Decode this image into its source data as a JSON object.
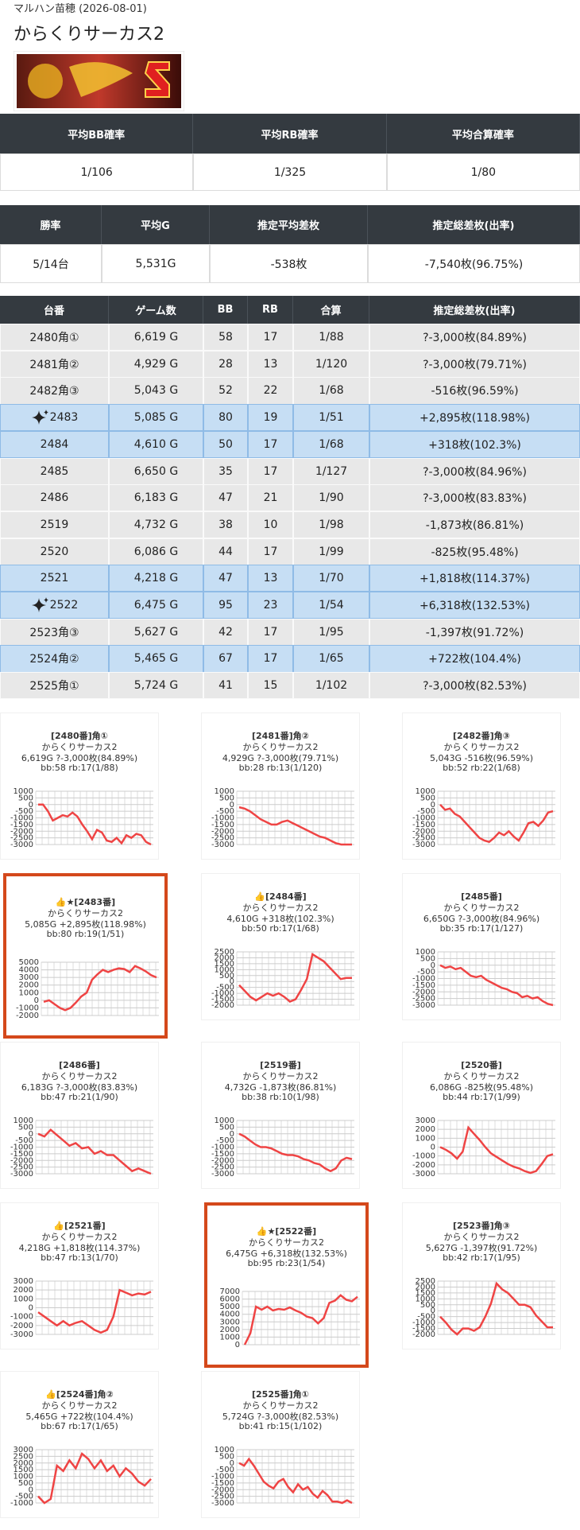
{
  "header": {
    "store": "マルハン苗穂 (2026-08-01)",
    "title": "からくりサーカス2"
  },
  "summary1": {
    "headers": [
      "平均BB確率",
      "平均RB確率",
      "平均合算確率"
    ],
    "values": [
      "1/106",
      "1/325",
      "1/80"
    ]
  },
  "summary2": {
    "headers": [
      "勝率",
      "平均G",
      "推定平均差枚",
      "推定総差枚(出率)"
    ],
    "values": [
      "5/14台",
      "5,531G",
      "-538枚",
      "-7,540枚(96.75%)"
    ]
  },
  "table": {
    "headers": [
      "台番",
      "ゲーム数",
      "BB",
      "RB",
      "合算",
      "推定総差枚(出率)"
    ],
    "rows": [
      {
        "cells": [
          "2480角①",
          "6,619 G",
          "58",
          "17",
          "1/88",
          "?-3,000枚(84.89%)"
        ],
        "highlight": false,
        "sparkle": false
      },
      {
        "cells": [
          "2481角②",
          "4,929 G",
          "28",
          "13",
          "1/120",
          "?-3,000枚(79.71%)"
        ],
        "highlight": false,
        "sparkle": false
      },
      {
        "cells": [
          "2482角③",
          "5,043 G",
          "52",
          "22",
          "1/68",
          "-516枚(96.59%)"
        ],
        "highlight": false,
        "sparkle": false
      },
      {
        "cells": [
          "2483",
          "5,085 G",
          "80",
          "19",
          "1/51",
          "+2,895枚(118.98%)"
        ],
        "highlight": true,
        "sparkle": true
      },
      {
        "cells": [
          "2484",
          "4,610 G",
          "50",
          "17",
          "1/68",
          "+318枚(102.3%)"
        ],
        "highlight": true,
        "sparkle": false
      },
      {
        "cells": [
          "2485",
          "6,650 G",
          "35",
          "17",
          "1/127",
          "?-3,000枚(84.96%)"
        ],
        "highlight": false,
        "sparkle": false
      },
      {
        "cells": [
          "2486",
          "6,183 G",
          "47",
          "21",
          "1/90",
          "?-3,000枚(83.83%)"
        ],
        "highlight": false,
        "sparkle": false
      },
      {
        "cells": [
          "2519",
          "4,732 G",
          "38",
          "10",
          "1/98",
          "-1,873枚(86.81%)"
        ],
        "highlight": false,
        "sparkle": false
      },
      {
        "cells": [
          "2520",
          "6,086 G",
          "44",
          "17",
          "1/99",
          "-825枚(95.48%)"
        ],
        "highlight": false,
        "sparkle": false
      },
      {
        "cells": [
          "2521",
          "4,218 G",
          "47",
          "13",
          "1/70",
          "+1,818枚(114.37%)"
        ],
        "highlight": true,
        "sparkle": false
      },
      {
        "cells": [
          "2522",
          "6,475 G",
          "95",
          "23",
          "1/54",
          "+6,318枚(132.53%)"
        ],
        "highlight": true,
        "sparkle": true
      },
      {
        "cells": [
          "2523角③",
          "5,627 G",
          "42",
          "17",
          "1/95",
          "-1,397枚(91.72%)"
        ],
        "highlight": false,
        "sparkle": false
      },
      {
        "cells": [
          "2524角②",
          "5,465 G",
          "67",
          "17",
          "1/65",
          "+722枚(104.4%)"
        ],
        "highlight": true,
        "sparkle": false
      },
      {
        "cells": [
          "2525角①",
          "5,724 G",
          "41",
          "15",
          "1/102",
          "?-3,000枚(82.53%)"
        ],
        "highlight": false,
        "sparkle": false
      }
    ]
  },
  "chart_data": [
    {
      "type": "line",
      "title_lines": [
        "[2480番]角①",
        "からくりサーカス2",
        "6,619G ?-3,000枚(84.89%)",
        "bb:58 rb:17(1/88)"
      ],
      "color": "#ef4444",
      "highlight": false,
      "ylim": [
        -3000,
        1000
      ],
      "yticks": [
        1000,
        500,
        0,
        -500,
        -1000,
        -1500,
        -2000,
        -2500,
        -3000
      ],
      "values": [
        0,
        0,
        -500,
        -1200,
        -1000,
        -800,
        -900,
        -600,
        -900,
        -1500,
        -2000,
        -2600,
        -1900,
        -2100,
        -2700,
        -2800,
        -2500,
        -2900,
        -2300,
        -2500,
        -2200,
        -2300,
        -2800,
        -3000
      ]
    },
    {
      "type": "line",
      "title_lines": [
        "[2481番]角②",
        "からくりサーカス2",
        "4,929G ?-3,000枚(79.71%)",
        "bb:28 rb:13(1/120)"
      ],
      "color": "#ef4444",
      "highlight": false,
      "ylim": [
        -3000,
        1000
      ],
      "yticks": [
        1000,
        500,
        0,
        -500,
        -1000,
        -1500,
        -2000,
        -2500,
        -3000
      ],
      "values": [
        -200,
        -300,
        -500,
        -800,
        -1100,
        -1300,
        -1500,
        -1500,
        -1300,
        -1200,
        -1400,
        -1600,
        -1800,
        -2000,
        -2200,
        -2400,
        -2500,
        -2700,
        -2900,
        -3000,
        -3000,
        -3000
      ]
    },
    {
      "type": "line",
      "title_lines": [
        "[2482番]角③",
        "からくりサーカス2",
        "5,043G -516枚(96.59%)",
        "bb:52 rb:22(1/68)"
      ],
      "color": "#ef4444",
      "highlight": false,
      "ylim": [
        -3000,
        1000
      ],
      "yticks": [
        1000,
        500,
        0,
        -500,
        -1000,
        -1500,
        -2000,
        -2500,
        -3000
      ],
      "values": [
        0,
        -400,
        -300,
        -700,
        -900,
        -1300,
        -1700,
        -2100,
        -2500,
        -2700,
        -2800,
        -2500,
        -2100,
        -2300,
        -2000,
        -2400,
        -2700,
        -2100,
        -1400,
        -1300,
        -1600,
        -1200,
        -600,
        -500
      ]
    },
    {
      "type": "line",
      "title_lines": [
        "👍★[2483番]",
        "からくりサーカス2",
        "5,085G +2,895枚(118.98%)",
        "bb:80 rb:19(1/51)"
      ],
      "color": "#ef4444",
      "highlight": true,
      "ylim": [
        -2000,
        5000
      ],
      "yticks": [
        5000,
        4000,
        3000,
        2000,
        1000,
        0,
        -1000,
        -2000
      ],
      "values": [
        -200,
        0,
        -500,
        -1000,
        -1300,
        -1000,
        -300,
        500,
        1000,
        2700,
        3400,
        4000,
        3700,
        4000,
        4200,
        4100,
        3700,
        4500,
        4200,
        3800,
        3300,
        3000
      ]
    },
    {
      "type": "line",
      "title_lines": [
        "👍[2484番]",
        "からくりサーカス2",
        "4,610G +318枚(102.3%)",
        "bb:50 rb:17(1/68)"
      ],
      "color": "#ef4444",
      "highlight": false,
      "ylim": [
        -2000,
        2500
      ],
      "yticks": [
        2500,
        2000,
        1500,
        1000,
        500,
        0,
        -500,
        -1000,
        -1500,
        -2000
      ],
      "values": [
        -300,
        -800,
        -1300,
        -1600,
        -1300,
        -1000,
        -1200,
        -1000,
        -1300,
        -1700,
        -1500,
        -700,
        200,
        2300,
        2000,
        1700,
        1200,
        700,
        200,
        300,
        300
      ]
    },
    {
      "type": "line",
      "title_lines": [
        "[2485番]",
        "からくりサーカス2",
        "6,650G ?-3,000枚(84.96%)",
        "bb:35 rb:17(1/127)"
      ],
      "color": "#ef4444",
      "highlight": false,
      "ylim": [
        -3000,
        1000
      ],
      "yticks": [
        1000,
        500,
        0,
        -500,
        -1000,
        -1500,
        -2000,
        -2500,
        -3000
      ],
      "values": [
        0,
        -200,
        -100,
        -300,
        -200,
        -500,
        -800,
        -900,
        -800,
        -1100,
        -1300,
        -1500,
        -1700,
        -1800,
        -2000,
        -2100,
        -2400,
        -2300,
        -2500,
        -2400,
        -2700,
        -2900,
        -3000
      ]
    },
    {
      "type": "line",
      "title_lines": [
        "[2486番]",
        "からくりサーカス2",
        "6,183G ?-3,000枚(83.83%)",
        "bb:47 rb:21(1/90)"
      ],
      "color": "#ef4444",
      "highlight": false,
      "ylim": [
        -3000,
        1000
      ],
      "yticks": [
        1000,
        500,
        0,
        -500,
        -1000,
        -1500,
        -2000,
        -2500,
        -3000
      ],
      "values": [
        0,
        -200,
        300,
        -100,
        -500,
        -900,
        -700,
        -1100,
        -1000,
        -1500,
        -1300,
        -1600,
        -1600,
        -2000,
        -2400,
        -2800,
        -2600,
        -2800,
        -3000
      ]
    },
    {
      "type": "line",
      "title_lines": [
        "[2519番]",
        "からくりサーカス2",
        "4,732G -1,873枚(86.81%)",
        "bb:38 rb:10(1/98)"
      ],
      "color": "#ef4444",
      "highlight": false,
      "ylim": [
        -3000,
        1000
      ],
      "yticks": [
        1000,
        500,
        0,
        -500,
        -1000,
        -1500,
        -2000,
        -2500,
        -3000
      ],
      "values": [
        0,
        -200,
        -500,
        -800,
        -1000,
        -1000,
        -1100,
        -1300,
        -1500,
        -1600,
        -1600,
        -1700,
        -1900,
        -2000,
        -2200,
        -2300,
        -2600,
        -2800,
        -2600,
        -2000,
        -1800,
        -1900
      ]
    },
    {
      "type": "line",
      "title_lines": [
        "[2520番]",
        "からくりサーカス2",
        "6,086G -825枚(95.48%)",
        "bb:44 rb:17(1/99)"
      ],
      "color": "#ef4444",
      "highlight": false,
      "ylim": [
        -3000,
        3000
      ],
      "yticks": [
        3000,
        2000,
        1000,
        0,
        -1000,
        -2000,
        -3000
      ],
      "values": [
        0,
        -300,
        -700,
        -1300,
        -500,
        2200,
        1500,
        800,
        0,
        -700,
        -1100,
        -1500,
        -1900,
        -2200,
        -2400,
        -2700,
        -2900,
        -2700,
        -1900,
        -1000,
        -800
      ]
    },
    {
      "type": "line",
      "title_lines": [
        "👍[2521番]",
        "からくりサーカス2",
        "4,218G +1,818枚(114.37%)",
        "bb:47 rb:13(1/70)"
      ],
      "color": "#ef4444",
      "highlight": false,
      "ylim": [
        -3000,
        3000
      ],
      "yticks": [
        3000,
        2000,
        1000,
        0,
        -1000,
        -2000,
        -3000
      ],
      "values": [
        -500,
        -1000,
        -1500,
        -2000,
        -1500,
        -2000,
        -1700,
        -1500,
        -2000,
        -2500,
        -2800,
        -2500,
        -1000,
        2000,
        1700,
        1400,
        1600,
        1500,
        1800
      ]
    },
    {
      "type": "line",
      "title_lines": [
        "👍★[2522番]",
        "からくりサーカス2",
        "6,475G +6,318枚(132.53%)",
        "bb:95 rb:23(1/54)"
      ],
      "color": "#ef4444",
      "highlight": true,
      "ylim": [
        0,
        7000
      ],
      "yticks": [
        7000,
        6000,
        5000,
        4000,
        3000,
        2000,
        1000,
        0
      ],
      "values": [
        0,
        1500,
        5000,
        4600,
        5000,
        4500,
        4700,
        4600,
        4900,
        4500,
        4200,
        3700,
        3500,
        2800,
        3500,
        5500,
        5800,
        6500,
        5900,
        5700,
        6300
      ]
    },
    {
      "type": "line",
      "title_lines": [
        "[2523番]角③",
        "からくりサーカス2",
        "5,627G -1,397枚(91.72%)",
        "bb:42 rb:17(1/95)"
      ],
      "color": "#ef4444",
      "highlight": false,
      "ylim": [
        -2000,
        2500
      ],
      "yticks": [
        2500,
        2000,
        1500,
        1000,
        500,
        0,
        -500,
        -1000,
        -1500,
        -2000
      ],
      "values": [
        -500,
        -1000,
        -1600,
        -2000,
        -1500,
        -1500,
        -1700,
        -1400,
        -500,
        600,
        2300,
        1800,
        1500,
        1000,
        500,
        500,
        300,
        -400,
        -900,
        -1400,
        -1400
      ]
    },
    {
      "type": "line",
      "title_lines": [
        "👍[2524番]角②",
        "からくりサーカス2",
        "5,465G +722枚(104.4%)",
        "bb:67 rb:17(1/65)"
      ],
      "color": "#ef4444",
      "highlight": false,
      "ylim": [
        -1000,
        3000
      ],
      "yticks": [
        3000,
        2500,
        2000,
        1500,
        1000,
        500,
        0,
        -500,
        -1000
      ],
      "values": [
        -500,
        -1000,
        -700,
        1800,
        1400,
        2200,
        1600,
        2700,
        2300,
        1600,
        2200,
        1400,
        1800,
        1000,
        1600,
        1200,
        600,
        300,
        800
      ]
    },
    {
      "type": "line",
      "title_lines": [
        "[2525番]角①",
        "からくりサーカス2",
        "5,724G ?-3,000枚(82.53%)",
        "bb:41 rb:15(1/102)"
      ],
      "color": "#ef4444",
      "highlight": false,
      "ylim": [
        -3000,
        1000
      ],
      "yticks": [
        1000,
        500,
        0,
        -500,
        -1000,
        -1500,
        -2000,
        -2500,
        -3000
      ],
      "values": [
        0,
        -200,
        300,
        -200,
        -800,
        -1400,
        -1700,
        -1900,
        -1400,
        -1200,
        -1800,
        -2200,
        -1600,
        -2000,
        -1800,
        -2300,
        -2600,
        -2100,
        -2400,
        -2900,
        -2900,
        -3000,
        -2800,
        -3000
      ]
    }
  ]
}
